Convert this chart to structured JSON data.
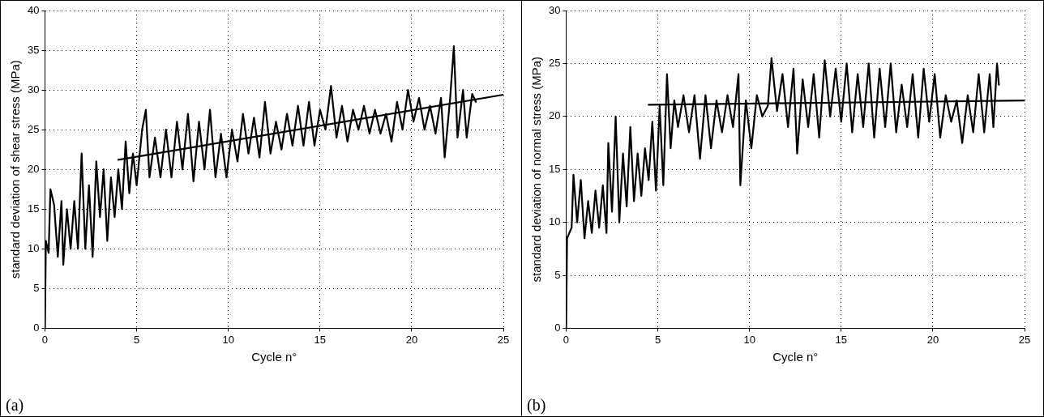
{
  "chart_data": [
    {
      "type": "line",
      "xlabel": "Cycle n°",
      "ylabel": "standard deviation of shear stress (MPa)",
      "xlim": [
        0,
        25
      ],
      "xticks": [
        0,
        5,
        10,
        15,
        20,
        25
      ],
      "ylim": [
        0,
        40
      ],
      "yticks": [
        0,
        5,
        10,
        15,
        20,
        25,
        30,
        35,
        40
      ],
      "grid": true,
      "marker": "none",
      "line_style": "solid",
      "annotations": [
        "(a)"
      ],
      "series": [
        {
          "color": "#000000",
          "x": [
            0,
            0.05,
            0.2,
            0.3,
            0.5,
            0.7,
            0.9,
            1.0,
            1.2,
            1.4,
            1.6,
            1.8,
            2.0,
            2.2,
            2.4,
            2.6,
            2.8,
            3.0,
            3.2,
            3.4,
            3.6,
            3.8,
            4.0,
            4.2,
            4.4,
            4.6,
            4.8,
            5.0,
            5.3,
            5.5,
            5.7,
            6.0,
            6.3,
            6.6,
            6.9,
            7.2,
            7.5,
            7.8,
            8.1,
            8.4,
            8.7,
            9.0,
            9.3,
            9.6,
            9.9,
            10.2,
            10.5,
            10.8,
            11.1,
            11.4,
            11.7,
            12.0,
            12.3,
            12.6,
            12.9,
            13.2,
            13.5,
            13.8,
            14.1,
            14.4,
            14.7,
            15.0,
            15.3,
            15.6,
            15.9,
            16.2,
            16.5,
            16.8,
            17.1,
            17.4,
            17.7,
            18.0,
            18.3,
            18.6,
            18.9,
            19.2,
            19.5,
            19.8,
            20.1,
            20.4,
            20.7,
            21.0,
            21.3,
            21.6,
            21.8,
            22.1,
            22.3,
            22.5,
            22.8,
            23.0,
            23.3,
            23.5
          ],
          "values": [
            0,
            11,
            9.5,
            17.5,
            15.5,
            9,
            16,
            8,
            15,
            10,
            16,
            10,
            22,
            10,
            18,
            9,
            21,
            14,
            20,
            11,
            19,
            14,
            20,
            15,
            23.5,
            17,
            22,
            18,
            25,
            27.5,
            19,
            24,
            19,
            25,
            19,
            26,
            20,
            27,
            18.5,
            26,
            20,
            27.5,
            19,
            24.5,
            19,
            25,
            21,
            27,
            22,
            26.5,
            21.5,
            28.5,
            22,
            26,
            22.5,
            27,
            23,
            28,
            23,
            28.5,
            23,
            27.5,
            25,
            30.5,
            24,
            28,
            23.5,
            27.5,
            25,
            28,
            24.5,
            27.5,
            24.5,
            27,
            23.5,
            28.5,
            25,
            30,
            26,
            29,
            25,
            28,
            24.5,
            29,
            21.5,
            29,
            35.5,
            24,
            30,
            24,
            29.5,
            28.5
          ]
        },
        {
          "color": "#000000",
          "x": [
            4,
            25
          ],
          "values": [
            21.2,
            29.4
          ]
        }
      ]
    },
    {
      "type": "line",
      "xlabel": "Cycle n°",
      "ylabel": "standard deviation of normal stress (MPa)",
      "xlim": [
        0,
        25
      ],
      "xticks": [
        0,
        5,
        10,
        15,
        20,
        25
      ],
      "ylim": [
        0,
        30
      ],
      "yticks": [
        0,
        5,
        10,
        15,
        20,
        25,
        30
      ],
      "grid": true,
      "marker": "none",
      "line_style": "solid",
      "annotations": [
        "(b)"
      ],
      "series": [
        {
          "color": "#000000",
          "x": [
            0,
            0.05,
            0.3,
            0.4,
            0.6,
            0.8,
            1.0,
            1.2,
            1.4,
            1.6,
            1.8,
            2.0,
            2.2,
            2.3,
            2.5,
            2.7,
            2.9,
            3.1,
            3.3,
            3.5,
            3.7,
            3.9,
            4.1,
            4.3,
            4.5,
            4.7,
            4.9,
            5.1,
            5.3,
            5.5,
            5.7,
            5.9,
            6.1,
            6.4,
            6.7,
            7.0,
            7.3,
            7.6,
            7.9,
            8.2,
            8.5,
            8.8,
            9.1,
            9.4,
            9.5,
            9.8,
            10.1,
            10.4,
            10.7,
            11.0,
            11.2,
            11.5,
            11.8,
            12.1,
            12.4,
            12.6,
            12.9,
            13.2,
            13.5,
            13.8,
            14.1,
            14.4,
            14.7,
            15.0,
            15.3,
            15.6,
            15.9,
            16.2,
            16.5,
            16.8,
            17.1,
            17.4,
            17.7,
            18.0,
            18.3,
            18.6,
            18.9,
            19.2,
            19.5,
            19.8,
            20.1,
            20.4,
            20.7,
            21.0,
            21.3,
            21.6,
            21.9,
            22.2,
            22.5,
            22.8,
            23.1,
            23.3,
            23.5,
            23.6
          ],
          "values": [
            0,
            8.5,
            9.5,
            14.5,
            10,
            14,
            8.5,
            12,
            9,
            13,
            9.5,
            13.5,
            9,
            17.5,
            11,
            20,
            10,
            16.5,
            11.5,
            19,
            12,
            16.5,
            12.5,
            17,
            14,
            19.5,
            13,
            21,
            13.5,
            24,
            17,
            21.5,
            19,
            22,
            18.5,
            22,
            16,
            22,
            17,
            21.5,
            18.5,
            22,
            19,
            24,
            13.5,
            21.5,
            17,
            22,
            20,
            21,
            25.5,
            20.5,
            24,
            19,
            24.5,
            16.5,
            23.5,
            19,
            24,
            18,
            25.3,
            20,
            24.5,
            19.5,
            25,
            18.5,
            24,
            19,
            25,
            18,
            24.5,
            19,
            25,
            18.5,
            23,
            19,
            24,
            18,
            24.5,
            19.5,
            24,
            18,
            22,
            19.5,
            21.5,
            17.5,
            22,
            18.5,
            24,
            18.5,
            24,
            19,
            25,
            23
          ]
        },
        {
          "color": "#000000",
          "x": [
            4.5,
            25
          ],
          "values": [
            21.1,
            21.5
          ]
        }
      ]
    }
  ]
}
